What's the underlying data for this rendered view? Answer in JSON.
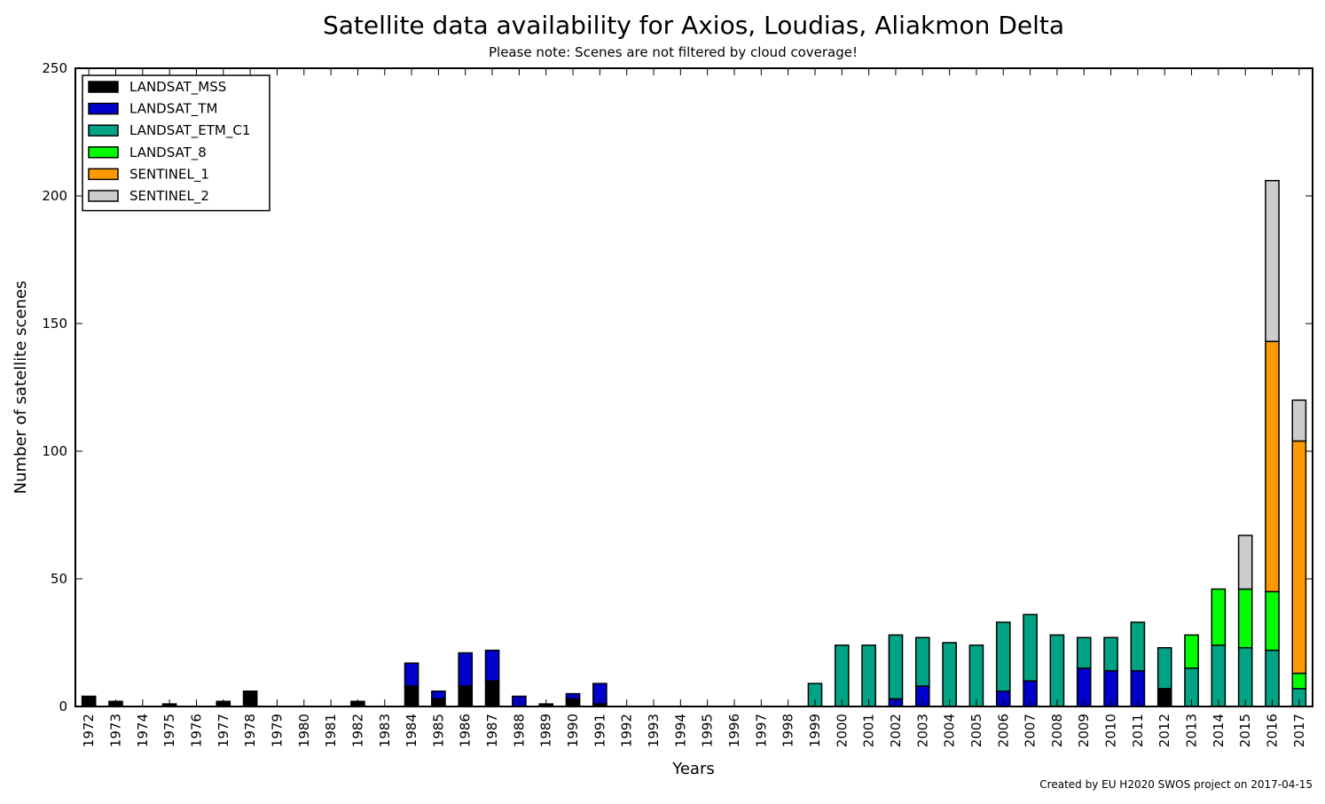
{
  "chart_data": {
    "type": "bar",
    "stacked": true,
    "title": "Satellite data availability for Axios, Loudias, Aliakmon Delta",
    "subtitle": "Please note: Scenes are not filtered by cloud coverage!",
    "xlabel": "Years",
    "ylabel": "Number of satellite scenes",
    "ylim": [
      0,
      250
    ],
    "yticks": [
      0,
      50,
      100,
      150,
      200,
      250
    ],
    "grid": false,
    "legend_position": "top-left",
    "credit": "Created by EU H2020 SWOS project on 2017-04-15",
    "categories": [
      "1972",
      "1973",
      "1974",
      "1975",
      "1976",
      "1977",
      "1978",
      "1979",
      "1980",
      "1981",
      "1982",
      "1983",
      "1984",
      "1985",
      "1986",
      "1987",
      "1988",
      "1989",
      "1990",
      "1991",
      "1992",
      "1993",
      "1994",
      "1995",
      "1996",
      "1997",
      "1998",
      "1999",
      "2000",
      "2001",
      "2002",
      "2003",
      "2004",
      "2005",
      "2006",
      "2007",
      "2008",
      "2009",
      "2010",
      "2011",
      "2012",
      "2013",
      "2014",
      "2015",
      "2016",
      "2017"
    ],
    "series": [
      {
        "name": "LANDSAT_MSS",
        "color": "#000000",
        "values": [
          4,
          2,
          0,
          1,
          0,
          2,
          6,
          0,
          0,
          0,
          2,
          0,
          8,
          3,
          8,
          10,
          0,
          1,
          3,
          1,
          0,
          0,
          0,
          0,
          0,
          0,
          0,
          0,
          0,
          0,
          0,
          0,
          0,
          0,
          0,
          0,
          0,
          0,
          0,
          0,
          7,
          0,
          0,
          0,
          0,
          0
        ]
      },
      {
        "name": "LANDSAT_TM",
        "color": "#0000cc",
        "values": [
          0,
          0,
          0,
          0,
          0,
          0,
          0,
          0,
          0,
          0,
          0,
          0,
          9,
          3,
          13,
          12,
          4,
          0,
          2,
          8,
          0,
          0,
          0,
          0,
          0,
          0,
          0,
          0,
          0,
          0,
          3,
          8,
          0,
          0,
          6,
          10,
          0,
          15,
          14,
          14,
          0,
          0,
          0,
          0,
          0,
          0
        ]
      },
      {
        "name": "LANDSAT_ETM_C1",
        "color": "#00a383",
        "values": [
          0,
          0,
          0,
          0,
          0,
          0,
          0,
          0,
          0,
          0,
          0,
          0,
          0,
          0,
          0,
          0,
          0,
          0,
          0,
          0,
          0,
          0,
          0,
          0,
          0,
          0,
          0,
          9,
          24,
          24,
          25,
          19,
          25,
          24,
          27,
          26,
          28,
          12,
          13,
          19,
          16,
          15,
          24,
          23,
          22,
          7
        ]
      },
      {
        "name": "LANDSAT_8",
        "color": "#00ff00",
        "values": [
          0,
          0,
          0,
          0,
          0,
          0,
          0,
          0,
          0,
          0,
          0,
          0,
          0,
          0,
          0,
          0,
          0,
          0,
          0,
          0,
          0,
          0,
          0,
          0,
          0,
          0,
          0,
          0,
          0,
          0,
          0,
          0,
          0,
          0,
          0,
          0,
          0,
          0,
          0,
          0,
          0,
          13,
          22,
          23,
          23,
          6
        ]
      },
      {
        "name": "SENTINEL_1",
        "color": "#ff9900",
        "values": [
          0,
          0,
          0,
          0,
          0,
          0,
          0,
          0,
          0,
          0,
          0,
          0,
          0,
          0,
          0,
          0,
          0,
          0,
          0,
          0,
          0,
          0,
          0,
          0,
          0,
          0,
          0,
          0,
          0,
          0,
          0,
          0,
          0,
          0,
          0,
          0,
          0,
          0,
          0,
          0,
          0,
          0,
          0,
          0,
          98,
          91
        ]
      },
      {
        "name": "SENTINEL_2",
        "color": "#cccccc",
        "values": [
          0,
          0,
          0,
          0,
          0,
          0,
          0,
          0,
          0,
          0,
          0,
          0,
          0,
          0,
          0,
          0,
          0,
          0,
          0,
          0,
          0,
          0,
          0,
          0,
          0,
          0,
          0,
          0,
          0,
          0,
          0,
          0,
          0,
          0,
          0,
          0,
          0,
          0,
          0,
          0,
          0,
          0,
          0,
          21,
          63,
          16
        ]
      }
    ]
  }
}
